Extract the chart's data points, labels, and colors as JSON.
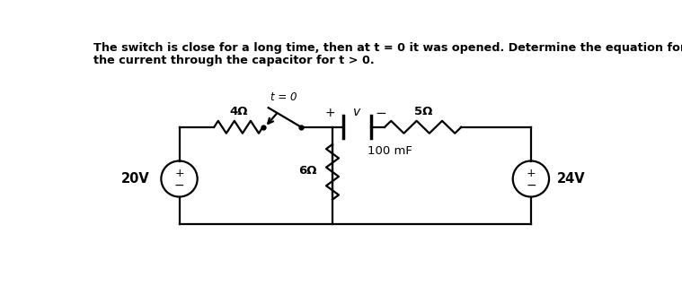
{
  "title_line1": "The switch is close for a long time, then at t = 0 it was opened. Determine the equation for",
  "title_line2": "the current through the capacitor for t > 0.",
  "bg_color": "#ffffff",
  "text_color": "#000000",
  "circuit_color": "#000000",
  "fig_width": 7.59,
  "fig_height": 3.28,
  "label_4ohm": "4Ω",
  "label_6ohm": "6Ω",
  "label_5ohm": "5Ω",
  "label_cap": "100 mF",
  "label_20v": "20V",
  "label_24v": "24V",
  "label_switch": "t = 0",
  "label_v": "v",
  "label_plus": "+",
  "label_minus": "−"
}
